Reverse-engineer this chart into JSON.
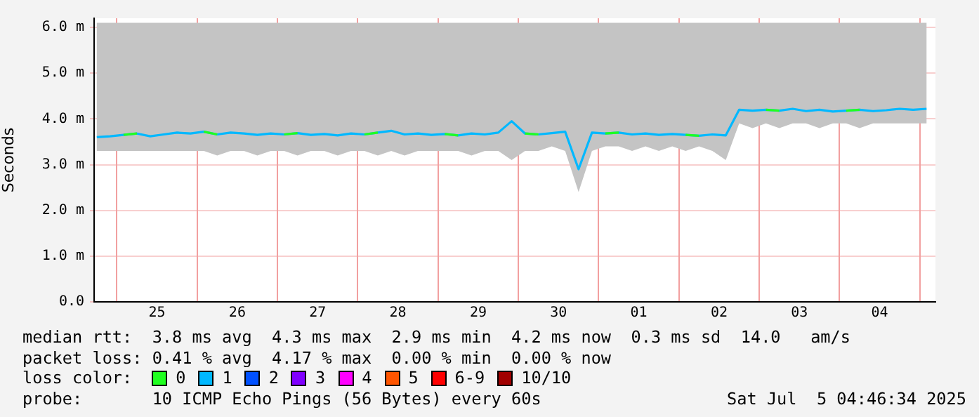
{
  "chart_data": {
    "type": "line",
    "ylabel": "Seconds",
    "x": [
      "2025-06-24T18:00",
      "2025-06-24T22:00",
      "2025-06-25T02:00",
      "2025-06-25T06:00",
      "2025-06-25T10:00",
      "2025-06-25T14:00",
      "2025-06-25T18:00",
      "2025-06-25T22:00",
      "2025-06-26T02:00",
      "2025-06-26T06:00",
      "2025-06-26T10:00",
      "2025-06-26T14:00",
      "2025-06-26T18:00",
      "2025-06-26T22:00",
      "2025-06-27T02:00",
      "2025-06-27T06:00",
      "2025-06-27T10:00",
      "2025-06-27T14:00",
      "2025-06-27T18:00",
      "2025-06-27T22:00",
      "2025-06-28T02:00",
      "2025-06-28T06:00",
      "2025-06-28T10:00",
      "2025-06-28T14:00",
      "2025-06-28T18:00",
      "2025-06-28T22:00",
      "2025-06-29T02:00",
      "2025-06-29T06:00",
      "2025-06-29T10:00",
      "2025-06-29T14:00",
      "2025-06-29T18:00",
      "2025-06-29T22:00",
      "2025-06-30T02:00",
      "2025-06-30T06:00",
      "2025-06-30T10:00",
      "2025-06-30T14:00",
      "2025-06-30T18:00",
      "2025-06-30T22:00",
      "2025-07-01T02:00",
      "2025-07-01T06:00",
      "2025-07-01T10:00",
      "2025-07-01T14:00",
      "2025-07-01T18:00",
      "2025-07-01T22:00",
      "2025-07-02T02:00",
      "2025-07-02T06:00",
      "2025-07-02T10:00",
      "2025-07-02T14:00",
      "2025-07-02T18:00",
      "2025-07-02T22:00",
      "2025-07-03T02:00",
      "2025-07-03T06:00",
      "2025-07-03T10:00",
      "2025-07-03T14:00",
      "2025-07-03T18:00",
      "2025-07-03T22:00",
      "2025-07-04T02:00",
      "2025-07-04T06:00",
      "2025-07-04T10:00",
      "2025-07-04T14:00",
      "2025-07-04T18:00",
      "2025-07-04T22:00",
      "2025-07-05T02:00"
    ],
    "series": [
      {
        "name": "0",
        "color": "#20ff20",
        "values": [
          null,
          null,
          3.65,
          3.68,
          null,
          null,
          null,
          null,
          3.72,
          3.66,
          null,
          null,
          null,
          null,
          3.66,
          3.69,
          null,
          null,
          null,
          null,
          3.66,
          3.7,
          null,
          null,
          null,
          null,
          3.67,
          3.64,
          null,
          null,
          null,
          null,
          3.68,
          3.66,
          null,
          null,
          null,
          null,
          3.68,
          3.7,
          null,
          null,
          null,
          null,
          3.65,
          3.63,
          null,
          null,
          null,
          null,
          4.2,
          4.18,
          null,
          null,
          null,
          null,
          4.18,
          4.2,
          null,
          null,
          null,
          null,
          null
        ]
      },
      {
        "name": "1",
        "color": "#00b8ff",
        "values": [
          3.6,
          3.62,
          3.65,
          3.68,
          3.62,
          3.66,
          3.7,
          3.68,
          3.72,
          3.66,
          3.7,
          3.68,
          3.65,
          3.68,
          3.66,
          3.69,
          3.65,
          3.67,
          3.64,
          3.68,
          3.66,
          3.7,
          3.74,
          3.66,
          3.68,
          3.65,
          3.67,
          3.64,
          3.68,
          3.66,
          3.7,
          3.95,
          3.68,
          3.66,
          3.69,
          3.72,
          2.9,
          3.7,
          3.68,
          3.7,
          3.66,
          3.68,
          3.65,
          3.67,
          3.65,
          3.63,
          3.66,
          3.64,
          4.2,
          4.18,
          4.2,
          4.18,
          4.22,
          4.17,
          4.2,
          4.16,
          4.18,
          4.2,
          4.17,
          4.19,
          4.22,
          4.2,
          4.22
        ],
        "lower": [
          3.3,
          3.3,
          3.3,
          3.3,
          3.3,
          3.3,
          3.3,
          3.3,
          3.3,
          3.2,
          3.3,
          3.3,
          3.2,
          3.3,
          3.3,
          3.2,
          3.3,
          3.3,
          3.2,
          3.3,
          3.3,
          3.2,
          3.3,
          3.2,
          3.3,
          3.3,
          3.3,
          3.3,
          3.2,
          3.3,
          3.3,
          3.1,
          3.3,
          3.3,
          3.4,
          3.3,
          2.4,
          3.3,
          3.4,
          3.4,
          3.3,
          3.4,
          3.3,
          3.4,
          3.3,
          3.4,
          3.3,
          3.1,
          3.9,
          3.8,
          3.9,
          3.8,
          3.9,
          3.9,
          3.8,
          3.9,
          3.9,
          3.8,
          3.9,
          3.9,
          3.9,
          3.9,
          3.9
        ],
        "upper": [
          6.1,
          6.1,
          6.1,
          6.1,
          6.1,
          6.1,
          6.1,
          6.1,
          6.1,
          6.1,
          6.1,
          6.1,
          6.1,
          6.1,
          6.1,
          6.1,
          6.1,
          6.1,
          6.1,
          6.1,
          6.1,
          6.1,
          6.1,
          6.1,
          6.1,
          6.1,
          6.1,
          6.1,
          6.1,
          6.1,
          6.1,
          6.1,
          6.1,
          6.1,
          6.1,
          6.1,
          6.1,
          6.1,
          6.1,
          6.1,
          6.1,
          6.1,
          6.1,
          6.1,
          6.1,
          6.1,
          6.1,
          6.1,
          6.1,
          6.1,
          6.1,
          6.1,
          6.1,
          6.1,
          6.1,
          6.1,
          6.1,
          6.1,
          6.1,
          6.1,
          6.1,
          6.1,
          6.1
        ]
      },
      {
        "name": "2",
        "color": "#0050ff",
        "values": [
          null,
          null,
          null,
          null,
          null,
          null,
          null,
          null,
          null,
          null,
          null,
          null,
          null,
          null,
          null,
          null,
          null,
          null,
          null,
          null,
          null,
          null,
          null,
          null,
          null,
          null,
          null,
          null,
          null,
          null,
          null,
          null,
          null,
          null,
          null,
          null,
          null,
          null,
          null,
          null,
          null,
          null,
          null,
          null,
          null,
          null,
          null,
          null,
          null,
          null,
          null,
          null,
          null,
          null,
          null,
          null,
          null,
          null,
          null,
          null,
          null,
          null,
          null
        ]
      },
      {
        "name": "3",
        "color": "#8000ff",
        "values": [
          null,
          null,
          null,
          null,
          null,
          null,
          null,
          null,
          null,
          null,
          null,
          null,
          null,
          null,
          null,
          null,
          null,
          null,
          null,
          null,
          null,
          null,
          null,
          null,
          null,
          null,
          null,
          null,
          null,
          null,
          null,
          null,
          null,
          null,
          null,
          null,
          null,
          null,
          null,
          null,
          null,
          null,
          null,
          null,
          null,
          null,
          null,
          null,
          null,
          null,
          null,
          null,
          null,
          null,
          null,
          null,
          null,
          null,
          null,
          null,
          null,
          null,
          null
        ]
      },
      {
        "name": "4",
        "color": "#ff00ff",
        "values": [
          null,
          null,
          null,
          null,
          null,
          null,
          null,
          null,
          null,
          null,
          null,
          null,
          null,
          null,
          null,
          null,
          null,
          null,
          null,
          null,
          null,
          null,
          null,
          null,
          null,
          null,
          null,
          null,
          null,
          null,
          null,
          null,
          null,
          null,
          null,
          null,
          null,
          null,
          null,
          null,
          null,
          null,
          null,
          null,
          null,
          null,
          null,
          null,
          null,
          null,
          null,
          null,
          null,
          null,
          null,
          null,
          null,
          null,
          null,
          null,
          null,
          null,
          null
        ]
      },
      {
        "name": "5",
        "color": "#ff5500",
        "values": [
          null,
          null,
          null,
          null,
          null,
          null,
          null,
          null,
          null,
          null,
          null,
          null,
          null,
          null,
          null,
          null,
          null,
          null,
          null,
          null,
          null,
          null,
          null,
          null,
          null,
          null,
          null,
          null,
          null,
          null,
          null,
          null,
          null,
          null,
          null,
          null,
          null,
          null,
          null,
          null,
          null,
          null,
          null,
          null,
          null,
          null,
          null,
          null,
          null,
          null,
          null,
          null,
          null,
          null,
          null,
          null,
          null,
          null,
          null,
          null,
          null,
          null,
          null
        ]
      },
      {
        "name": "6-9",
        "color": "#ff0000",
        "values": [
          null,
          null,
          null,
          null,
          null,
          null,
          null,
          null,
          null,
          null,
          null,
          null,
          null,
          null,
          null,
          null,
          null,
          null,
          null,
          null,
          null,
          null,
          null,
          null,
          null,
          null,
          null,
          null,
          null,
          null,
          null,
          null,
          null,
          null,
          null,
          null,
          null,
          null,
          null,
          null,
          null,
          null,
          null,
          null,
          null,
          null,
          null,
          null,
          null,
          null,
          null,
          null,
          null,
          null,
          null,
          null,
          null,
          null,
          null,
          null,
          null,
          null,
          null
        ]
      },
      {
        "name": "10/10",
        "color": "#a10000",
        "values": [
          null,
          null,
          null,
          null,
          null,
          null,
          null,
          null,
          null,
          null,
          null,
          null,
          null,
          null,
          null,
          null,
          null,
          null,
          null,
          null,
          null,
          null,
          null,
          null,
          null,
          null,
          null,
          null,
          null,
          null,
          null,
          null,
          null,
          null,
          null,
          null,
          null,
          null,
          null,
          null,
          null,
          null,
          null,
          null,
          null,
          null,
          null,
          null,
          null,
          null,
          null,
          null,
          null,
          null,
          null,
          null,
          null,
          null,
          null,
          null,
          null,
          null,
          null
        ]
      }
    ],
    "xlim": [
      "2025-06-24T17:12",
      "2025-07-05T04:40"
    ],
    "xticks": [
      {
        "value": "2025-06-25T00:00",
        "label": null
      },
      {
        "value": "2025-06-25T12:00",
        "label": "25"
      },
      {
        "value": "2025-06-26T00:00",
        "label": null
      },
      {
        "value": "2025-06-26T12:00",
        "label": "26"
      },
      {
        "value": "2025-06-27T00:00",
        "label": null
      },
      {
        "value": "2025-06-27T12:00",
        "label": "27"
      },
      {
        "value": "2025-06-28T00:00",
        "label": null
      },
      {
        "value": "2025-06-28T12:00",
        "label": "28"
      },
      {
        "value": "2025-06-29T00:00",
        "label": null
      },
      {
        "value": "2025-06-29T12:00",
        "label": "29"
      },
      {
        "value": "2025-06-30T00:00",
        "label": null
      },
      {
        "value": "2025-06-30T12:00",
        "label": "30"
      },
      {
        "value": "2025-07-01T00:00",
        "label": null
      },
      {
        "value": "2025-07-01T12:00",
        "label": "01"
      },
      {
        "value": "2025-07-02T00:00",
        "label": null
      },
      {
        "value": "2025-07-02T12:00",
        "label": "02"
      },
      {
        "value": "2025-07-03T00:00",
        "label": null
      },
      {
        "value": "2025-07-03T12:00",
        "label": "03"
      },
      {
        "value": "2025-07-04T00:00",
        "label": null
      },
      {
        "value": "2025-07-04T12:00",
        "label": "04"
      },
      {
        "value": "2025-07-05T00:00",
        "label": null
      }
    ],
    "ylim": [
      0,
      6.2
    ],
    "yticks": [
      {
        "value": 0,
        "label": "0.0"
      },
      {
        "value": 1,
        "label": "1.0 m"
      },
      {
        "value": 2,
        "label": "2.0 m"
      },
      {
        "value": 3,
        "label": "3.0 m"
      },
      {
        "value": 4,
        "label": "4.0 m"
      },
      {
        "value": 5,
        "label": "5.0 m"
      },
      {
        "value": 6,
        "label": "6.0 m"
      }
    ],
    "grid": true,
    "legend": "bottom",
    "legend_title": "loss color:",
    "annotations": [
      "median rtt:  3.8 ms avg  4.3 ms max  2.9 ms min  4.2 ms now  0.3 ms sd  14.0   am/s",
      "packet loss: 0.41 % avg  4.17 % max  0.00 % min  0.00 % now",
      "probe:       10 ICMP Echo Pings (56 Bytes) every 60s",
      "Sat Jul  5 04:46:34 2025"
    ]
  }
}
